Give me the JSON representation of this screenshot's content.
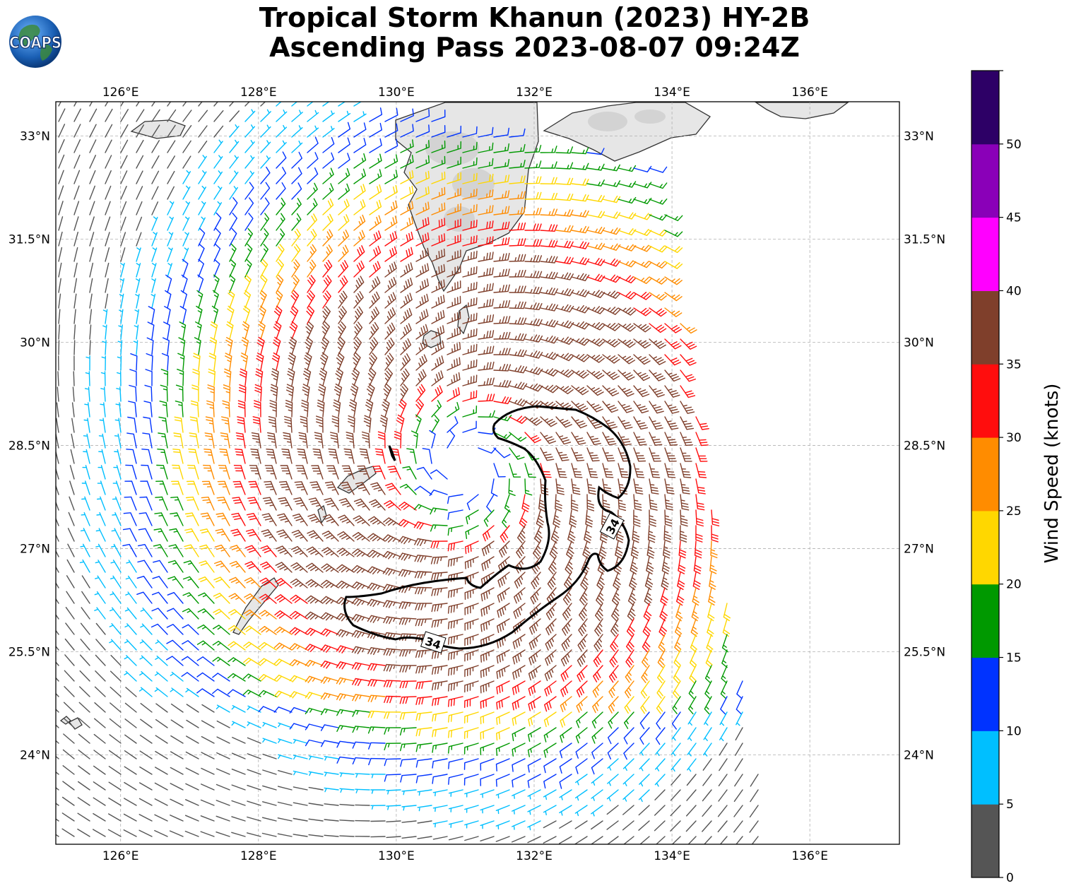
{
  "title": {
    "line1": "Tropical Storm Khanun (2023) HY-2B",
    "line2": "Ascending Pass 2023-08-07 09:24Z"
  },
  "logo": {
    "text": "COAPS",
    "icon": "globe-icon"
  },
  "map": {
    "lon_range": [
      125.06,
      137.3
    ],
    "lat_range": [
      22.7,
      33.5
    ],
    "lon_ticks": [
      "126°E",
      "128°E",
      "130°E",
      "132°E",
      "134°E",
      "136°E"
    ],
    "lat_ticks": [
      "33°N",
      "31.5°N",
      "30°N",
      "28.5°N",
      "27°N",
      "25.5°N",
      "24°N"
    ],
    "gridlines": true,
    "storm_center": {
      "lon": 131.0,
      "lat": 28.2
    },
    "contour_label": "34",
    "contour_label_count": 2
  },
  "colorbar": {
    "label": "Wind Speed (knots)",
    "ticks": [
      "0",
      "5",
      "10",
      "15",
      "20",
      "25",
      "30",
      "35",
      "40",
      "45",
      "50"
    ],
    "colors": [
      "#555555",
      "#00bfff",
      "#0033ff",
      "#009900",
      "#ffd700",
      "#ff8c00",
      "#ff0d0d",
      "#7f3f2b",
      "#ff00ff",
      "#8a00b8",
      "#2d0066"
    ]
  },
  "colors": {
    "land": "#e6e6e6",
    "coast": "#333333",
    "contour": "#000000",
    "grid": "#b0b0b0"
  }
}
